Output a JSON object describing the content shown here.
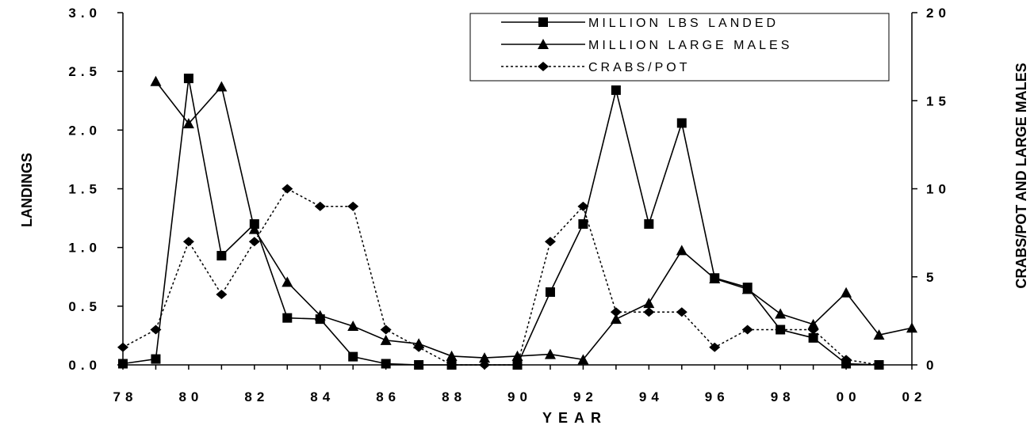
{
  "chart_data": {
    "type": "line",
    "xlabel": "YEAR",
    "ylabel": "LANDINGS",
    "y2label": "CRABS/POT AND LARGE MALES",
    "x_ticks": [
      "78",
      "80",
      "82",
      "84",
      "86",
      "88",
      "90",
      "92",
      "94",
      "96",
      "98",
      "00",
      "02"
    ],
    "y_ticks": [
      "0.0",
      "0.5",
      "1.0",
      "1.5",
      "2.0",
      "2.5",
      "3.0"
    ],
    "y2_ticks": [
      "0",
      "5",
      "10",
      "15",
      "20"
    ],
    "ylim": [
      0,
      3.0
    ],
    "y2lim": [
      0,
      20
    ],
    "x_range": [
      1978,
      2002
    ],
    "grid": false,
    "legend_position": "top-right",
    "series": [
      {
        "name": "MILLION LBS LANDED",
        "axis": "left",
        "marker": "square",
        "line": "solid",
        "x": [
          1978,
          1979,
          1980,
          1981,
          1982,
          1983,
          1984,
          1985,
          1986,
          1987,
          1988,
          1990,
          1991,
          1992,
          1993,
          1994,
          1995,
          1996,
          1997,
          1998,
          1999,
          2000,
          2001
        ],
        "values": [
          0.01,
          0.05,
          2.44,
          0.93,
          1.2,
          0.4,
          0.39,
          0.07,
          0.01,
          0.0,
          0.0,
          0.0,
          0.62,
          1.2,
          2.34,
          1.2,
          2.06,
          0.74,
          0.66,
          0.3,
          0.23,
          0.01,
          0.0
        ]
      },
      {
        "name": "MILLION LARGE MALES",
        "axis": "right",
        "marker": "triangle",
        "line": "solid",
        "x": [
          1979,
          1980,
          1981,
          1982,
          1983,
          1984,
          1985,
          1986,
          1987,
          1988,
          1989,
          1990,
          1991,
          1992,
          1993,
          1994,
          1995,
          1996,
          1997,
          1998,
          1999,
          2000,
          2001,
          2002
        ],
        "values": [
          16.1,
          13.7,
          15.8,
          7.7,
          4.7,
          2.8,
          2.2,
          1.4,
          1.2,
          0.5,
          0.4,
          0.5,
          0.6,
          0.3,
          2.6,
          3.5,
          6.5,
          4.9,
          4.3,
          2.9,
          2.3,
          4.1,
          1.7,
          2.1
        ]
      },
      {
        "name": "CRABS/POT",
        "axis": "right",
        "marker": "diamond",
        "line": "dotted",
        "x": [
          1978,
          1979,
          1980,
          1981,
          1982,
          1983,
          1984,
          1985,
          1986,
          1987,
          1988,
          1989,
          1990,
          1991,
          1992,
          1993,
          1994,
          1995,
          1996,
          1997,
          1998,
          1999,
          2000,
          2001
        ],
        "values": [
          1.0,
          2.0,
          7.0,
          4.0,
          7.0,
          10.0,
          9.0,
          9.0,
          2.0,
          1.0,
          0.0,
          0.0,
          0.0,
          7.0,
          9.0,
          3.0,
          3.0,
          3.0,
          1.0,
          2.0,
          2.0,
          2.0,
          0.3,
          0.0
        ]
      }
    ]
  }
}
